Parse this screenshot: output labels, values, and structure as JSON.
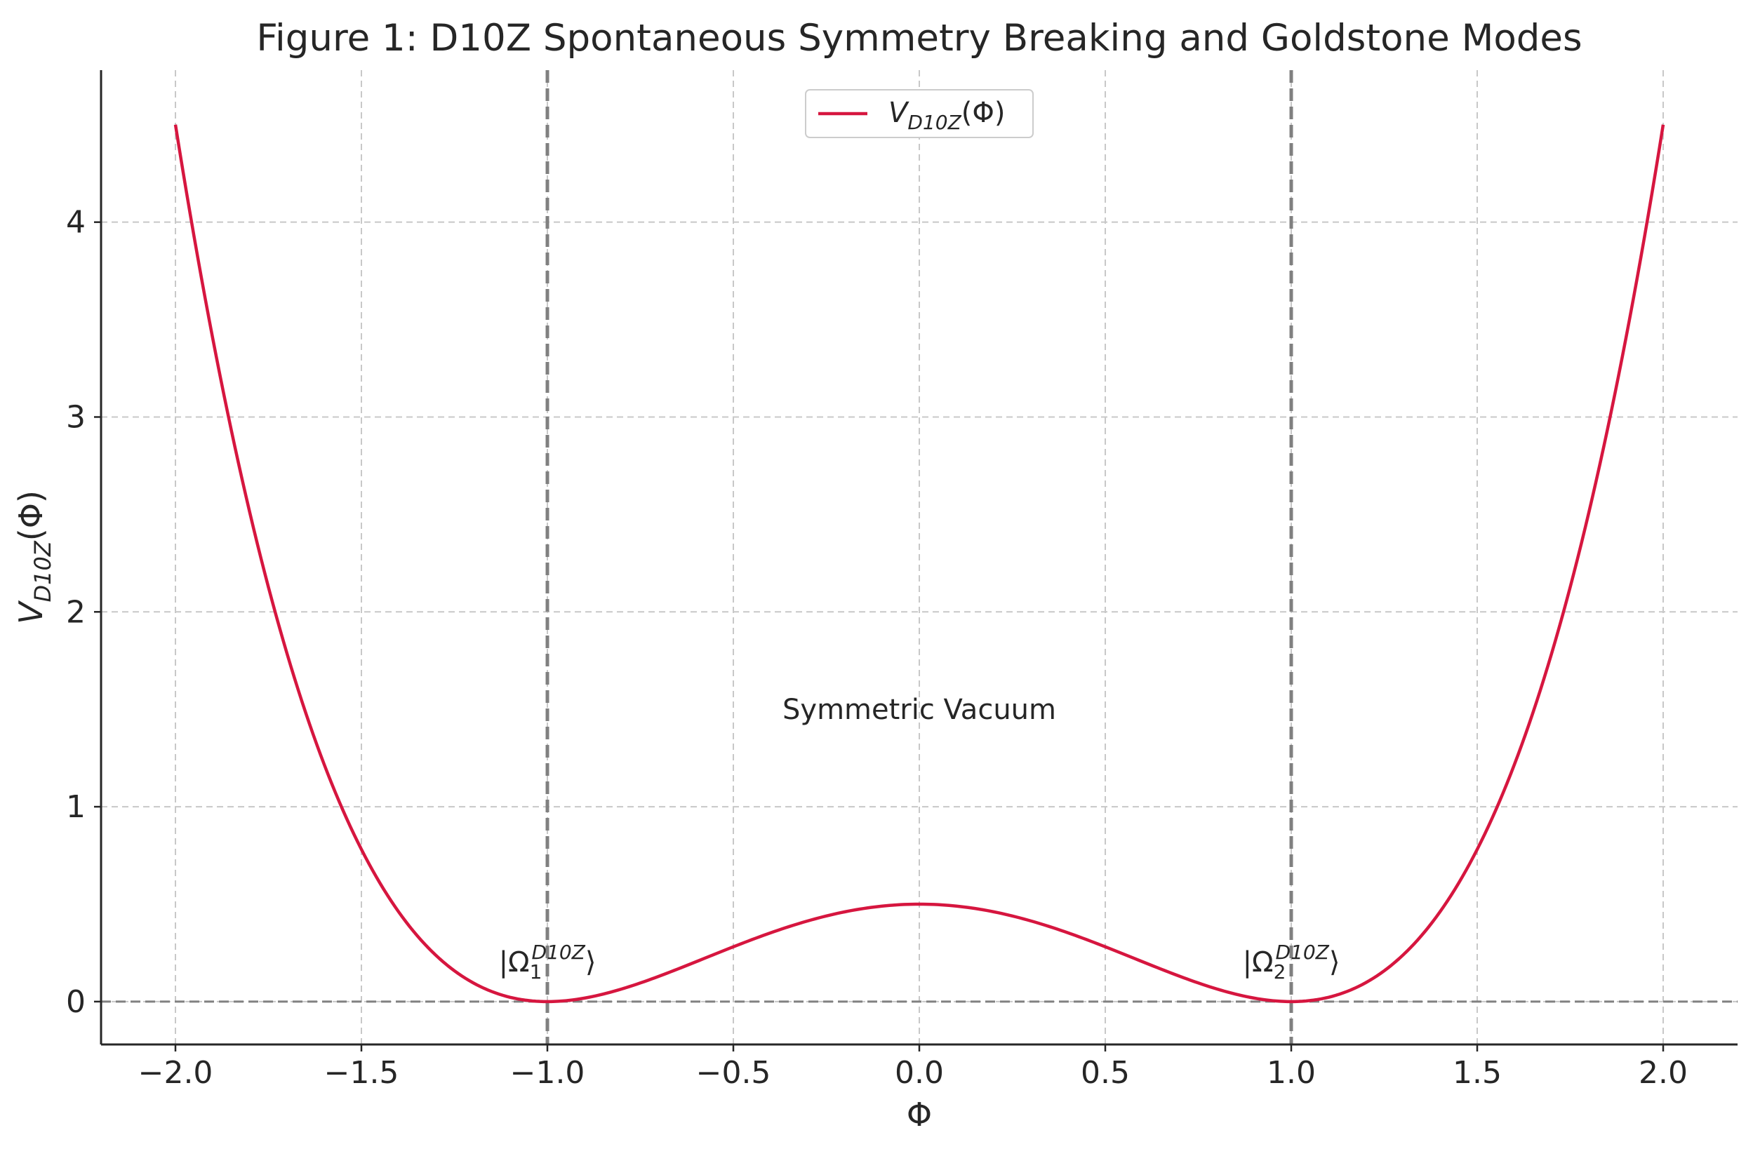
{
  "chart_data": {
    "type": "line",
    "title": "Figure 1: D10Z Spontaneous Symmetry Breaking and Goldstone Modes",
    "xlabel": "Φ",
    "ylabel": "V_D10Z(Φ)",
    "xlim": [
      -2.2,
      2.2
    ],
    "ylim": [
      -0.22,
      4.78
    ],
    "x_ticks": [
      "−2.0",
      "−1.5",
      "−1.0",
      "−0.5",
      "0.0",
      "0.5",
      "1.0",
      "1.5",
      "2.0"
    ],
    "y_ticks": [
      "0",
      "1",
      "2",
      "3",
      "4"
    ],
    "grid": true,
    "legend_position": "top-center",
    "series": [
      {
        "name": "V_D10Z(Φ)",
        "color": "#d6163f",
        "formula": "0.5 * (Φ^2 - 1)^2",
        "x": [
          -2.0,
          -1.75,
          -1.5,
          -1.25,
          -1.0,
          -0.75,
          -0.5,
          -0.25,
          0.0,
          0.25,
          0.5,
          0.75,
          1.0,
          1.25,
          1.5,
          1.75,
          2.0
        ],
        "y": [
          4.5,
          2.07,
          0.78,
          0.16,
          0.0,
          0.096,
          0.28,
          0.44,
          0.5,
          0.44,
          0.28,
          0.096,
          0.0,
          0.16,
          0.78,
          2.07,
          4.5
        ]
      }
    ],
    "reference_lines": {
      "vertical_x": [
        -1.0,
        1.0
      ],
      "horizontal_y": [
        0.0
      ],
      "color": "#808080",
      "style": "dashed"
    },
    "annotations": [
      {
        "id": "vacuum-1",
        "text": "|Ω₁^D10Z⟩",
        "base": "|Ω",
        "sub": "1",
        "sup": "D10Z",
        "close": "⟩",
        "x": -1.0,
        "y": 0.1
      },
      {
        "id": "vacuum-2",
        "text": "|Ω₂^D10Z⟩",
        "base": "|Ω",
        "sub": "2",
        "sup": "D10Z",
        "close": "⟩",
        "x": 1.0,
        "y": 0.1
      },
      {
        "id": "symmetric-vacuum",
        "text": "Symmetric Vacuum",
        "x": 0.0,
        "y": 1.5
      }
    ]
  }
}
